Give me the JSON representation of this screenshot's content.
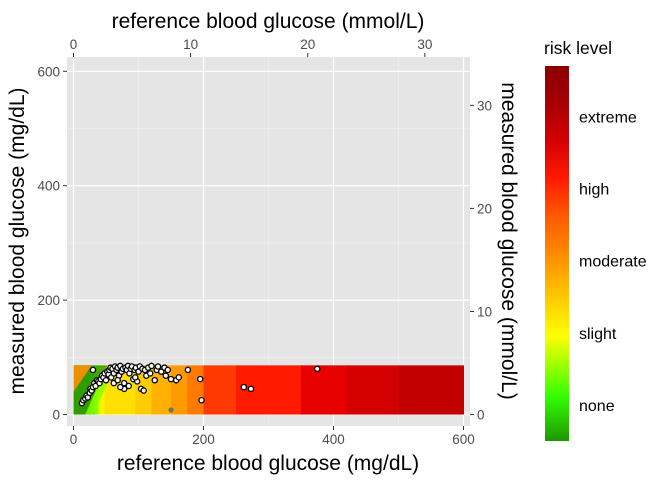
{
  "chart_data": {
    "type": "scatter",
    "title": "",
    "xlabel": "reference blood glucose (mg/dL)",
    "ylabel": "measured blood glucose (mg/dL)",
    "x2label": "reference blood glucose (mmol/L)",
    "y2label": "measured blood glucose (mmol/L)",
    "xlim": [
      -10,
      610
    ],
    "ylim": [
      -20,
      625
    ],
    "x_ticks": [
      0,
      200,
      400,
      600
    ],
    "y_ticks": [
      0,
      200,
      400,
      600
    ],
    "x2_ticks": [
      0,
      10,
      20,
      30
    ],
    "y2_ticks": [
      0,
      10,
      20,
      30
    ],
    "mmol_factor": 18.0182,
    "grid": true,
    "panel_background": "#e5e5e5",
    "risk_band": {
      "y_range": [
        0,
        86
      ],
      "x_range": [
        0,
        600
      ],
      "description": "risk-level heat strip behind the points"
    },
    "legend": {
      "title": "risk level",
      "position": "right",
      "labels": [
        "none",
        "slight",
        "moderate",
        "high",
        "extreme"
      ],
      "label_values": [
        0.125,
        0.375,
        0.625,
        0.875,
        1.125
      ],
      "range": [
        0,
        1.3
      ],
      "colors": [
        "#009900",
        "#00ff00",
        "#ffff00",
        "#ffa500",
        "#ff4500",
        "#ff0000",
        "#8b0000",
        "#800000"
      ]
    },
    "series": [
      {
        "marker": "white-fill black-outline circle",
        "points": [
          [
            13,
            20
          ],
          [
            15,
            25
          ],
          [
            18,
            28
          ],
          [
            20,
            33
          ],
          [
            22,
            30
          ],
          [
            25,
            38
          ],
          [
            26,
            45
          ],
          [
            28,
            42
          ],
          [
            30,
            48
          ],
          [
            32,
            55
          ],
          [
            34,
            50
          ],
          [
            36,
            60
          ],
          [
            38,
            58
          ],
          [
            40,
            55
          ],
          [
            42,
            62
          ],
          [
            44,
            68
          ],
          [
            46,
            65
          ],
          [
            48,
            72
          ],
          [
            50,
            60
          ],
          [
            52,
            75
          ],
          [
            54,
            70
          ],
          [
            55,
            78
          ],
          [
            57,
            82
          ],
          [
            58,
            65
          ],
          [
            60,
            80
          ],
          [
            62,
            72
          ],
          [
            64,
            84
          ],
          [
            66,
            78
          ],
          [
            68,
            82
          ],
          [
            70,
            68
          ],
          [
            72,
            85
          ],
          [
            74,
            75
          ],
          [
            76,
            80
          ],
          [
            78,
            55
          ],
          [
            80,
            82
          ],
          [
            82,
            78
          ],
          [
            84,
            85
          ],
          [
            86,
            72
          ],
          [
            88,
            80
          ],
          [
            90,
            84
          ],
          [
            92,
            62
          ],
          [
            94,
            78
          ],
          [
            96,
            82
          ],
          [
            98,
            58
          ],
          [
            100,
            75
          ],
          [
            102,
            84
          ],
          [
            104,
            45
          ],
          [
            106,
            80
          ],
          [
            108,
            42
          ],
          [
            110,
            78
          ],
          [
            112,
            68
          ],
          [
            115,
            82
          ],
          [
            118,
            72
          ],
          [
            120,
            85
          ],
          [
            125,
            60
          ],
          [
            128,
            78
          ],
          [
            130,
            84
          ],
          [
            135,
            75
          ],
          [
            140,
            82
          ],
          [
            142,
            68
          ],
          [
            145,
            78
          ],
          [
            150,
            62
          ],
          [
            158,
            60
          ],
          [
            162,
            65
          ],
          [
            176,
            78
          ],
          [
            195,
            62
          ],
          [
            197,
            25
          ],
          [
            262,
            48
          ],
          [
            273,
            45
          ],
          [
            375,
            80
          ],
          [
            30,
            78
          ],
          [
            62,
            55
          ],
          [
            68,
            60
          ],
          [
            78,
            45
          ],
          [
            85,
            50
          ],
          [
            72,
            48
          ],
          [
            95,
            65
          ]
        ]
      },
      {
        "marker": "grey filled circle",
        "points": [
          [
            150,
            8
          ]
        ]
      }
    ]
  }
}
